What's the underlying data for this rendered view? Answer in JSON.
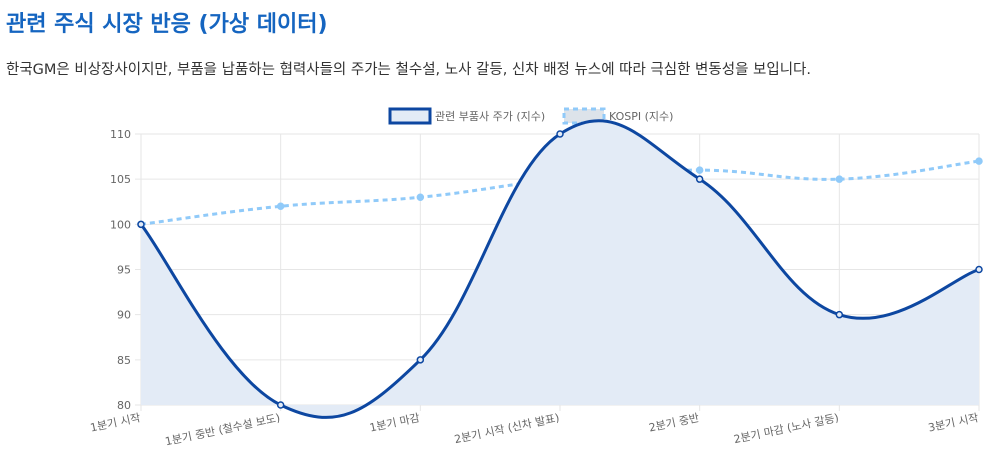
{
  "header": {
    "title": "관련 주식 시장 반응 (가상 데이터)",
    "description": "한국GM은 비상장사이지만, 부품을 납품하는 협력사들의 주가는 철수설, 노사 갈등, 신차 배정 뉴스에 따라 극심한 변동성을 보입니다."
  },
  "chart_data": {
    "type": "line",
    "categories": [
      "1분기 시작",
      "1분기 중반 (철수설 보도)",
      "1분기 마감",
      "2분기 시작 (신차 발표)",
      "2분기 중반",
      "2분기 마감 (노사 갈등)",
      "3분기 시작"
    ],
    "series": [
      {
        "name": "관련 부품사 주가 (지수)",
        "values": [
          100,
          80,
          85,
          110,
          105,
          90,
          95
        ],
        "color": "#0d47a1",
        "fill": "#e3ebf6",
        "style": "solid"
      },
      {
        "name": "KOSPI (지수)",
        "values": [
          100,
          102,
          103,
          105,
          106,
          105,
          107
        ],
        "color": "#90caf9",
        "style": "dashed"
      }
    ],
    "ylim": [
      80,
      110
    ],
    "yticks": [
      80,
      85,
      90,
      95,
      100,
      105,
      110
    ],
    "xlabel": "",
    "ylabel": "",
    "grid": true,
    "legend": "top"
  }
}
